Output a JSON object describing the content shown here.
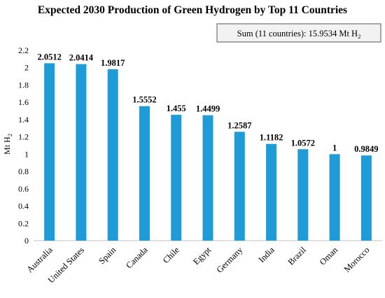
{
  "chart_data": {
    "type": "bar",
    "title": "Expected 2030 Production of Green Hydrogen by Top 11 Countries",
    "annotation": {
      "text": "Sum (11 countries): 15.9534 Mt H",
      "subscript": "2"
    },
    "ylabel": "Mt H",
    "ylabel_subscript": "2",
    "ylim": [
      0,
      2.2
    ],
    "yticks": [
      "0",
      "0.2",
      "0.4",
      "0.6",
      "0.8",
      "1",
      "1.2",
      "1.4",
      "1.6",
      "1.8",
      "2",
      "2.2"
    ],
    "ytick_values": [
      0,
      0.2,
      0.4,
      0.6,
      0.8,
      1,
      1.2,
      1.4,
      1.6,
      1.8,
      2,
      2.2
    ],
    "categories": [
      "Australia",
      "United States",
      "Spain",
      "Canada",
      "Chile",
      "Egypt",
      "Germany",
      "India",
      "Brazil",
      "Oman",
      "Morocco"
    ],
    "values": [
      2.0512,
      2.0414,
      1.9817,
      1.5552,
      1.455,
      1.4499,
      1.2587,
      1.1182,
      1.0572,
      1,
      0.9849
    ],
    "data_labels": [
      "2.0512",
      "2.0414",
      "1.9817",
      "1.5552",
      "1.455",
      "1.4499",
      "1.2587",
      "1.1182",
      "1.0572",
      "1",
      "0.9849"
    ],
    "bar_color": "#1f9bd7",
    "grid": false,
    "legend": "none"
  }
}
